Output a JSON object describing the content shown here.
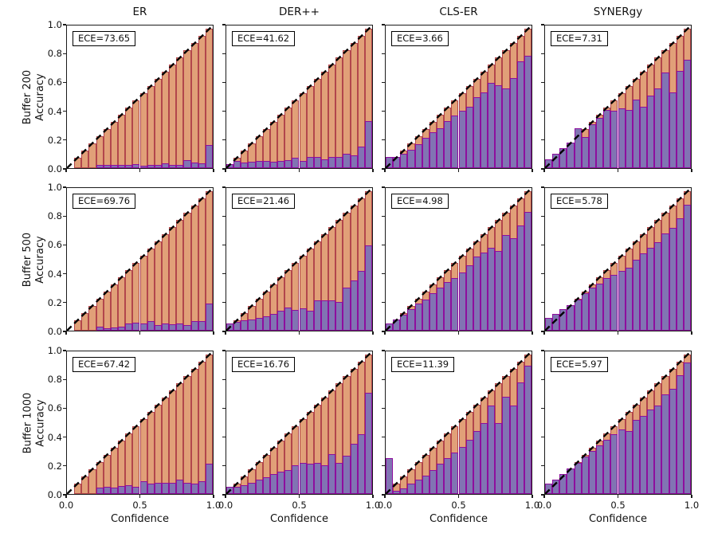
{
  "figure": {
    "column_titles": [
      "ER",
      "DER++",
      "CLS-ER",
      "SYNERgy"
    ],
    "row_titles": [
      "Buffer 200",
      "Buffer 500",
      "Buffer 1000"
    ],
    "row_label_line2": "Accuracy",
    "x_axis_label": "Confidence",
    "x_tick_labels": [
      "0.0",
      "0.5",
      "1.0"
    ],
    "y_tick_labels": [
      "0.0",
      "0.2",
      "0.4",
      "0.6",
      "0.8",
      "1.0"
    ]
  },
  "colors": {
    "gap_fill": "#e1a078",
    "gap_edge": "#b2464c",
    "accuracy_fill": "#8174b3",
    "accuracy_edge": "#8e0e9e",
    "diagonal": "#000000",
    "spine": "#1a1a1a"
  },
  "chart_data": [
    {
      "type": "bar",
      "method": "ER",
      "buffer": 200,
      "ece": 73.65,
      "ece_label": "ECE=73.65",
      "xlabel": "Confidence",
      "ylabel": "Accuracy",
      "xlim": [
        0,
        1
      ],
      "ylim": [
        0,
        1
      ],
      "bin_width": 0.05,
      "confidence": [
        0,
        0.075,
        0.125,
        0.175,
        0.225,
        0.275,
        0.325,
        0.375,
        0.425,
        0.475,
        0.525,
        0.575,
        0.625,
        0.675,
        0.725,
        0.775,
        0.825,
        0.875,
        0.925,
        0.975
      ],
      "accuracy": [
        0,
        0,
        0,
        0,
        0.02,
        0.02,
        0.02,
        0.02,
        0.02,
        0.03,
        0.015,
        0.02,
        0.02,
        0.035,
        0.02,
        0.025,
        0.055,
        0.04,
        0.035,
        0.16
      ]
    },
    {
      "type": "bar",
      "method": "DER++",
      "buffer": 200,
      "ece": 41.62,
      "ece_label": "ECE=41.62",
      "xlabel": "Confidence",
      "ylabel": "Accuracy",
      "xlim": [
        0,
        1
      ],
      "ylim": [
        0,
        1
      ],
      "bin_width": 0.05,
      "confidence": [
        0.025,
        0.075,
        0.125,
        0.175,
        0.225,
        0.275,
        0.325,
        0.375,
        0.425,
        0.475,
        0.525,
        0.575,
        0.625,
        0.675,
        0.725,
        0.775,
        0.825,
        0.875,
        0.925,
        0.975
      ],
      "accuracy": [
        0.03,
        0.05,
        0.04,
        0.045,
        0.05,
        0.05,
        0.045,
        0.05,
        0.055,
        0.07,
        0.05,
        0.08,
        0.08,
        0.06,
        0.08,
        0.08,
        0.1,
        0.09,
        0.15,
        0.33
      ]
    },
    {
      "type": "bar",
      "method": "CLS-ER",
      "buffer": 200,
      "ece": 3.66,
      "ece_label": "ECE=3.66",
      "xlabel": "Confidence",
      "ylabel": "Accuracy",
      "xlim": [
        0,
        1
      ],
      "ylim": [
        0,
        1
      ],
      "bin_width": 0.05,
      "confidence": [
        0.025,
        0.075,
        0.125,
        0.175,
        0.225,
        0.275,
        0.325,
        0.375,
        0.425,
        0.475,
        0.525,
        0.575,
        0.625,
        0.675,
        0.725,
        0.775,
        0.825,
        0.875,
        0.925,
        0.975
      ],
      "accuracy": [
        0.08,
        0.08,
        0.1,
        0.13,
        0.17,
        0.21,
        0.25,
        0.28,
        0.33,
        0.37,
        0.4,
        0.43,
        0.5,
        0.53,
        0.6,
        0.58,
        0.56,
        0.63,
        0.75,
        0.79
      ]
    },
    {
      "type": "bar",
      "method": "SYNERgy",
      "buffer": 200,
      "ece": 7.31,
      "ece_label": "ECE=7.31",
      "xlabel": "Confidence",
      "ylabel": "Accuracy",
      "xlim": [
        0,
        1
      ],
      "ylim": [
        0,
        1
      ],
      "bin_width": 0.05,
      "confidence": [
        0.025,
        0.075,
        0.125,
        0.175,
        0.225,
        0.275,
        0.325,
        0.375,
        0.425,
        0.475,
        0.525,
        0.575,
        0.625,
        0.675,
        0.725,
        0.775,
        0.825,
        0.875,
        0.925,
        0.975
      ],
      "accuracy": [
        0.06,
        0.1,
        0.14,
        0.18,
        0.28,
        0.22,
        0.31,
        0.35,
        0.41,
        0.4,
        0.42,
        0.41,
        0.48,
        0.43,
        0.51,
        0.56,
        0.67,
        0.53,
        0.68,
        0.76
      ]
    },
    {
      "type": "bar",
      "method": "ER",
      "buffer": 500,
      "ece": 69.76,
      "ece_label": "ECE=69.76",
      "xlabel": "Confidence",
      "ylabel": "Accuracy",
      "xlim": [
        0,
        1
      ],
      "ylim": [
        0,
        1
      ],
      "bin_width": 0.05,
      "confidence": [
        0,
        0.075,
        0.125,
        0.175,
        0.225,
        0.275,
        0.325,
        0.375,
        0.425,
        0.475,
        0.525,
        0.575,
        0.625,
        0.675,
        0.725,
        0.775,
        0.825,
        0.875,
        0.925,
        0.975
      ],
      "accuracy": [
        0,
        0,
        0,
        0,
        0.03,
        0.015,
        0.025,
        0.03,
        0.05,
        0.055,
        0.05,
        0.065,
        0.04,
        0.05,
        0.045,
        0.05,
        0.04,
        0.065,
        0.065,
        0.19
      ]
    },
    {
      "type": "bar",
      "method": "DER++",
      "buffer": 500,
      "ece": 21.46,
      "ece_label": "ECE=21.46",
      "xlabel": "Confidence",
      "ylabel": "Accuracy",
      "xlim": [
        0,
        1
      ],
      "ylim": [
        0,
        1
      ],
      "bin_width": 0.05,
      "confidence": [
        0.025,
        0.075,
        0.125,
        0.175,
        0.225,
        0.275,
        0.325,
        0.375,
        0.425,
        0.475,
        0.525,
        0.575,
        0.625,
        0.675,
        0.725,
        0.775,
        0.825,
        0.875,
        0.925,
        0.975
      ],
      "accuracy": [
        0.05,
        0.06,
        0.07,
        0.08,
        0.09,
        0.1,
        0.12,
        0.14,
        0.16,
        0.145,
        0.155,
        0.14,
        0.21,
        0.215,
        0.21,
        0.2,
        0.3,
        0.35,
        0.42,
        0.6
      ]
    },
    {
      "type": "bar",
      "method": "CLS-ER",
      "buffer": 500,
      "ece": 4.98,
      "ece_label": "ECE=4.98",
      "xlabel": "Confidence",
      "ylabel": "Accuracy",
      "xlim": [
        0,
        1
      ],
      "ylim": [
        0,
        1
      ],
      "bin_width": 0.05,
      "confidence": [
        0.025,
        0.075,
        0.125,
        0.175,
        0.225,
        0.275,
        0.325,
        0.375,
        0.425,
        0.475,
        0.525,
        0.575,
        0.625,
        0.675,
        0.725,
        0.775,
        0.825,
        0.875,
        0.925,
        0.975
      ],
      "accuracy": [
        0.05,
        0.08,
        0.11,
        0.15,
        0.19,
        0.22,
        0.26,
        0.3,
        0.34,
        0.37,
        0.41,
        0.46,
        0.52,
        0.55,
        0.58,
        0.56,
        0.67,
        0.65,
        0.74,
        0.83
      ]
    },
    {
      "type": "bar",
      "method": "SYNERgy",
      "buffer": 500,
      "ece": 5.78,
      "ece_label": "ECE=5.78",
      "xlabel": "Confidence",
      "ylabel": "Accuracy",
      "xlim": [
        0,
        1
      ],
      "ylim": [
        0,
        1
      ],
      "bin_width": 0.05,
      "confidence": [
        0.025,
        0.075,
        0.125,
        0.175,
        0.225,
        0.275,
        0.325,
        0.375,
        0.425,
        0.475,
        0.525,
        0.575,
        0.625,
        0.675,
        0.725,
        0.775,
        0.825,
        0.875,
        0.925,
        0.975
      ],
      "accuracy": [
        0.09,
        0.12,
        0.15,
        0.18,
        0.22,
        0.26,
        0.3,
        0.33,
        0.37,
        0.39,
        0.42,
        0.44,
        0.5,
        0.54,
        0.58,
        0.62,
        0.68,
        0.72,
        0.79,
        0.88
      ]
    },
    {
      "type": "bar",
      "method": "ER",
      "buffer": 1000,
      "ece": 67.42,
      "ece_label": "ECE=67.42",
      "xlabel": "Confidence",
      "ylabel": "Accuracy",
      "xlim": [
        0,
        1
      ],
      "ylim": [
        0,
        1
      ],
      "bin_width": 0.05,
      "confidence": [
        0,
        0.075,
        0.125,
        0.175,
        0.225,
        0.275,
        0.325,
        0.375,
        0.425,
        0.475,
        0.525,
        0.575,
        0.625,
        0.675,
        0.725,
        0.775,
        0.825,
        0.875,
        0.925,
        0.975
      ],
      "accuracy": [
        0,
        0,
        0,
        0,
        0.045,
        0.05,
        0.045,
        0.055,
        0.06,
        0.05,
        0.09,
        0.075,
        0.08,
        0.08,
        0.08,
        0.1,
        0.08,
        0.07,
        0.09,
        0.21
      ]
    },
    {
      "type": "bar",
      "method": "DER++",
      "buffer": 1000,
      "ece": 16.76,
      "ece_label": "ECE=16.76",
      "xlabel": "Confidence",
      "ylabel": "Accuracy",
      "xlim": [
        0,
        1
      ],
      "ylim": [
        0,
        1
      ],
      "bin_width": 0.05,
      "confidence": [
        0.025,
        0.075,
        0.125,
        0.175,
        0.225,
        0.275,
        0.325,
        0.375,
        0.425,
        0.475,
        0.525,
        0.575,
        0.625,
        0.675,
        0.725,
        0.775,
        0.825,
        0.875,
        0.925,
        0.975
      ],
      "accuracy": [
        0.05,
        0.05,
        0.06,
        0.08,
        0.1,
        0.12,
        0.14,
        0.155,
        0.17,
        0.2,
        0.22,
        0.215,
        0.22,
        0.2,
        0.28,
        0.22,
        0.27,
        0.35,
        0.42,
        0.71
      ]
    },
    {
      "type": "bar",
      "method": "CLS-ER",
      "buffer": 1000,
      "ece": 11.39,
      "ece_label": "ECE=11.39",
      "xlabel": "Confidence",
      "ylabel": "Accuracy",
      "xlim": [
        0,
        1
      ],
      "ylim": [
        0,
        1
      ],
      "bin_width": 0.05,
      "confidence": [
        0.025,
        0.075,
        0.125,
        0.175,
        0.225,
        0.275,
        0.325,
        0.375,
        0.425,
        0.475,
        0.525,
        0.575,
        0.625,
        0.675,
        0.725,
        0.775,
        0.825,
        0.875,
        0.925,
        0.975
      ],
      "accuracy": [
        0.25,
        0.02,
        0.04,
        0.07,
        0.1,
        0.13,
        0.17,
        0.21,
        0.25,
        0.29,
        0.33,
        0.38,
        0.44,
        0.5,
        0.62,
        0.5,
        0.68,
        0.62,
        0.78,
        0.9
      ]
    },
    {
      "type": "bar",
      "method": "SYNERgy",
      "buffer": 1000,
      "ece": 5.97,
      "ece_label": "ECE=5.97",
      "xlabel": "Confidence",
      "ylabel": "Accuracy",
      "xlim": [
        0,
        1
      ],
      "ylim": [
        0,
        1
      ],
      "bin_width": 0.05,
      "confidence": [
        0.025,
        0.075,
        0.125,
        0.175,
        0.225,
        0.275,
        0.325,
        0.375,
        0.425,
        0.475,
        0.525,
        0.575,
        0.625,
        0.675,
        0.725,
        0.775,
        0.825,
        0.875,
        0.925,
        0.975
      ],
      "accuracy": [
        0.07,
        0.1,
        0.14,
        0.18,
        0.22,
        0.26,
        0.3,
        0.34,
        0.38,
        0.42,
        0.45,
        0.44,
        0.52,
        0.55,
        0.59,
        0.62,
        0.7,
        0.74,
        0.83,
        0.92
      ]
    }
  ]
}
